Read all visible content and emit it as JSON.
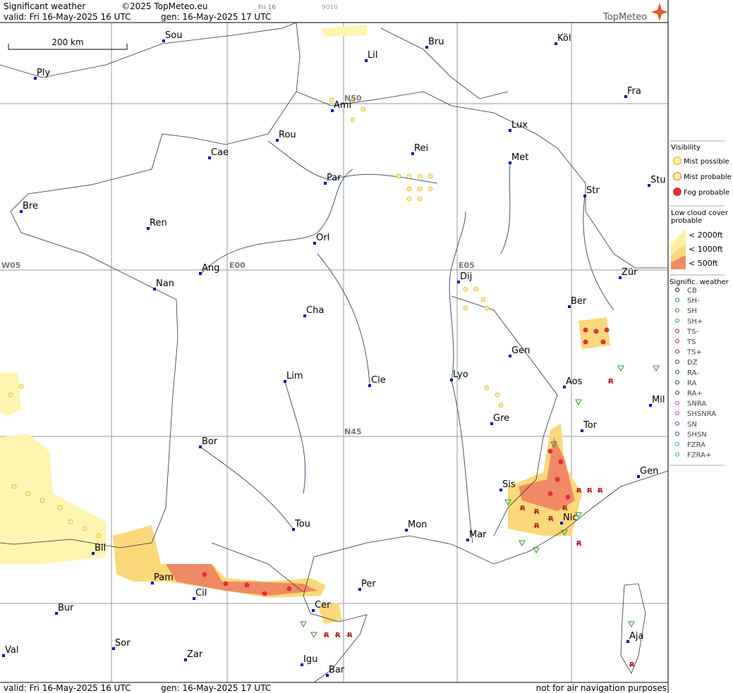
{
  "header": {
    "title": "Significant weather",
    "copyright": "©2025 TopMeteo.eu",
    "day": "Fri 16",
    "code": "9010",
    "valid": "valid:  Fri  16-May-2025  16 UTC",
    "gen": "gen: 16-May-2025 17 UTC",
    "brand": "TopMeteo"
  },
  "scale": "200 km",
  "grid_labels": [
    "N50",
    "W05",
    "E00",
    "E05",
    "N45"
  ],
  "cities": [
    "Sou",
    "Lil",
    "Bru",
    "Köl",
    "Ply",
    "Ami",
    "Fra",
    "Rou",
    "Lux",
    "Cae",
    "Rei",
    "Met",
    "Par",
    "Stu",
    "Str",
    "Bre",
    "Ren",
    "Orl",
    "Ang",
    "Nan",
    "Zür",
    "Dij",
    "Ber",
    "Cha",
    "Gen",
    "Lim",
    "Cle",
    "Lyo",
    "Aos",
    "Mil",
    "Gre",
    "Tor",
    "Bor",
    "Gen",
    "Sis",
    "Tou",
    "Mon",
    "Nic",
    "Mar",
    "Bil",
    "Pam",
    "Per",
    "Cil",
    "Cer",
    "Bur",
    "Aja",
    "Sor",
    "Zar",
    "Val",
    "Igu",
    "Bar"
  ],
  "legend": {
    "visibility_title": "Visibility",
    "visibility": [
      "Mist possible",
      "Mist probable",
      "Fog probable"
    ],
    "cloud_title": "Low cloud cover probable",
    "cloud": [
      "< 2000ft",
      "< 1000ft",
      "<  500ft"
    ],
    "weather_title": "Signific. weather",
    "weather": [
      "CB",
      "SH-",
      "SH",
      "SH+",
      "TS-",
      "TS",
      "TS+",
      "DZ",
      "RA-",
      "RA",
      "RA+",
      "SNRA",
      "SHSNRA",
      "SN",
      "SHSN",
      "FZRA",
      "FZRA+"
    ]
  },
  "footer": {
    "valid": "valid:  Fri  16-May-2025  16 UTC",
    "gen": "gen: 16-May-2025 17 UTC",
    "note": "not for air navigation purposes"
  }
}
